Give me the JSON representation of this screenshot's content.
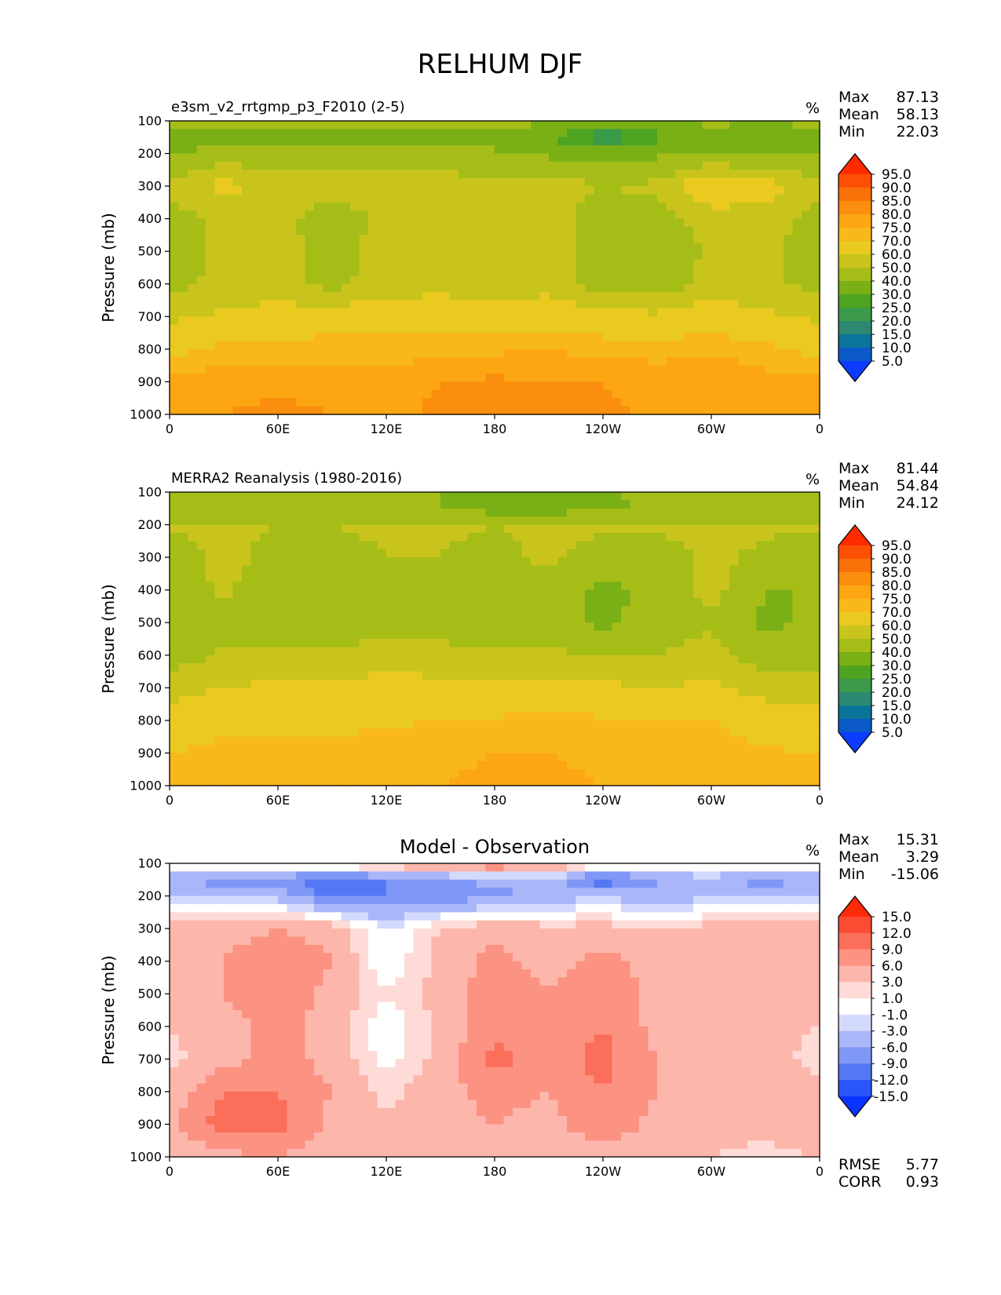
{
  "title": "RELHUM DJF",
  "panels": [
    {
      "title": "e3sm_v2_rrtgmp_p3_F2010 (2-5)",
      "units": "%",
      "stats": [
        {
          "label": "Max",
          "value": "87.13"
        },
        {
          "label": "Mean",
          "value": "58.13"
        },
        {
          "label": "Min",
          "value": "22.03"
        }
      ],
      "colorbar": "absolute",
      "field": "model",
      "footer": []
    },
    {
      "title": "MERRA2 Reanalysis (1980-2016)",
      "units": "%",
      "stats": [
        {
          "label": "Max",
          "value": "81.44"
        },
        {
          "label": "Mean",
          "value": "54.84"
        },
        {
          "label": "Min",
          "value": "24.12"
        }
      ],
      "colorbar": "absolute",
      "field": "obs",
      "footer": []
    },
    {
      "title": "Model - Observation",
      "units": "%",
      "stats": [
        {
          "label": "Max",
          "value": "15.31"
        },
        {
          "label": "Mean",
          "value": "3.29"
        },
        {
          "label": "Min",
          "value": "-15.06"
        }
      ],
      "colorbar": "diff",
      "field": "diff",
      "footer": [
        {
          "label": "RMSE",
          "value": "5.77"
        },
        {
          "label": "CORR",
          "value": "0.93"
        }
      ]
    }
  ],
  "colorbars": {
    "absolute": {
      "levels": [
        "5.0",
        "10.0",
        "15.0",
        "20.0",
        "25.0",
        "30.0",
        "40.0",
        "50.0",
        "60.0",
        "70.0",
        "75.0",
        "80.0",
        "85.0",
        "90.0",
        "95.0"
      ],
      "bounds": [
        0,
        5,
        10,
        15,
        20,
        25,
        30,
        40,
        50,
        60,
        70,
        75,
        80,
        85,
        90,
        95,
        100
      ],
      "colors": [
        "#0b3cff",
        "#0b58c8",
        "#0a749a",
        "#2c8870",
        "#3a9a4a",
        "#4ea321",
        "#78b016",
        "#a6bd18",
        "#c8c41c",
        "#ebca1f",
        "#f8b81a",
        "#fca614",
        "#fb8e0e",
        "#f97108",
        "#fd5005",
        "#fe2b00"
      ]
    },
    "diff": {
      "levels": [
        "-15.0",
        "-12.0",
        "-9.0",
        "-6.0",
        "-3.0",
        "-1.0",
        "1.0",
        "3.0",
        "6.0",
        "9.0",
        "12.0",
        "15.0"
      ],
      "bounds": [
        -18,
        -15,
        -12,
        -9,
        -6,
        -3,
        -1,
        1,
        3,
        6,
        9,
        12,
        15,
        18
      ],
      "colors": [
        "#0a33ff",
        "#2a55f9",
        "#5478f4",
        "#7f97f6",
        "#a9b6f8",
        "#d4dafb",
        "#ffffff",
        "#fedbd6",
        "#fdb6ab",
        "#fc9281",
        "#fb6e59",
        "#fb4b32",
        "#fe2a08"
      ]
    }
  },
  "chart_data": {
    "type": "heatmap",
    "xlabel": "",
    "ylabel": "Pressure (mb)",
    "x_ticks": [
      "0",
      "60E",
      "120E",
      "180",
      "120W",
      "60W",
      "0"
    ],
    "x_tick_values": [
      0,
      60,
      120,
      180,
      240,
      300,
      360
    ],
    "y_ticks": [
      "100",
      "200",
      "300",
      "400",
      "500",
      "600",
      "700",
      "800",
      "900",
      "1000"
    ],
    "y_tick_values": [
      100,
      200,
      300,
      400,
      500,
      600,
      700,
      800,
      900,
      1000
    ],
    "xlim": [
      0,
      360
    ],
    "ylim": [
      1000,
      100
    ],
    "grid_lon": [
      0,
      30,
      60,
      90,
      120,
      150,
      180,
      210,
      240,
      270,
      300,
      330,
      360
    ],
    "grid_p": [
      100,
      150,
      200,
      300,
      400,
      500,
      600,
      700,
      800,
      900,
      1000
    ],
    "model": [
      [
        46,
        45,
        45,
        46,
        47,
        47,
        46,
        40,
        36,
        38,
        43,
        38,
        46
      ],
      [
        34,
        37,
        37,
        26,
        30,
        34,
        38,
        30,
        18,
        27,
        36,
        34,
        34
      ],
      [
        40,
        43,
        43,
        46,
        46,
        42,
        41,
        38,
        37,
        38,
        39,
        38,
        40
      ],
      [
        52,
        64,
        55,
        55,
        56,
        55,
        55,
        55,
        50,
        52,
        71,
        66,
        52
      ],
      [
        45,
        53,
        55,
        42,
        54,
        55,
        54,
        56,
        43,
        47,
        54,
        55,
        45
      ],
      [
        44,
        52,
        55,
        44,
        56,
        56,
        55,
        56,
        42,
        42,
        52,
        53,
        44
      ],
      [
        46,
        54,
        55,
        46,
        56,
        56,
        55,
        56,
        43,
        43,
        55,
        53,
        46
      ],
      [
        58,
        62,
        64,
        66,
        66,
        67,
        67,
        67,
        65,
        62,
        66,
        62,
        58
      ],
      [
        68,
        72,
        72,
        73,
        73,
        73,
        74,
        75,
        73,
        73,
        74,
        72,
        68
      ],
      [
        76,
        78,
        79,
        78,
        77,
        80,
        81,
        80,
        80,
        78,
        80,
        77,
        76
      ],
      [
        78,
        80,
        81,
        80,
        79,
        81,
        82,
        81,
        81,
        79,
        80,
        78,
        78
      ]
    ],
    "obs": [
      [
        46,
        46,
        46,
        46,
        44,
        40,
        32,
        32,
        37,
        45,
        46,
        40,
        46
      ],
      [
        40,
        40,
        40,
        40,
        40,
        40,
        36,
        34,
        38,
        42,
        42,
        40,
        40
      ],
      [
        52,
        52,
        50,
        50,
        52,
        52,
        50,
        53,
        53,
        52,
        52,
        52,
        52
      ],
      [
        42,
        55,
        45,
        46,
        50,
        50,
        46,
        53,
        44,
        46,
        52,
        48,
        42
      ],
      [
        40,
        52,
        42,
        40,
        42,
        44,
        44,
        45,
        38,
        42,
        54,
        40,
        40
      ],
      [
        42,
        44,
        40,
        42,
        45,
        44,
        44,
        44,
        38,
        44,
        48,
        38,
        42
      ],
      [
        44,
        52,
        52,
        52,
        55,
        54,
        52,
        52,
        50,
        50,
        55,
        44,
        44
      ],
      [
        56,
        60,
        62,
        62,
        64,
        63,
        62,
        62,
        62,
        60,
        62,
        56,
        56
      ],
      [
        64,
        68,
        68,
        68,
        69,
        70,
        71,
        72,
        71,
        70,
        70,
        66,
        64
      ],
      [
        70,
        72,
        73,
        73,
        72,
        74,
        75,
        75,
        74,
        72,
        74,
        71,
        70
      ],
      [
        72,
        73,
        74,
        74,
        73,
        75,
        76,
        76,
        75,
        73,
        75,
        72,
        72
      ]
    ],
    "diff": [
      [
        2,
        2,
        2,
        4,
        6,
        8,
        10,
        7,
        3,
        2,
        2,
        2,
        2
      ],
      [
        -5,
        -8,
        -7,
        -12,
        -9,
        -7,
        -5,
        -4,
        -12,
        -6,
        -4,
        -8,
        -5
      ],
      [
        -3,
        -4,
        -4,
        -10,
        -9,
        -8,
        -7,
        -5,
        -3,
        -6,
        -3,
        -4,
        -3
      ],
      [
        4,
        5,
        6,
        5,
        -1,
        3,
        5,
        4,
        4,
        3,
        4,
        4,
        4
      ],
      [
        4,
        6,
        8,
        6,
        -1,
        4,
        7,
        5,
        7,
        5,
        4,
        6,
        4
      ],
      [
        4,
        6,
        8,
        5,
        1,
        4,
        8,
        6,
        8,
        5,
        3,
        5,
        4
      ],
      [
        3,
        5,
        7,
        5,
        -1,
        4,
        8,
        6,
        9,
        5,
        4,
        4,
        3
      ],
      [
        2,
        5,
        7,
        5,
        0,
        4,
        10,
        8,
        10,
        6,
        4,
        4,
        2
      ],
      [
        4,
        9,
        9,
        6,
        2,
        5,
        7,
        6,
        9,
        6,
        5,
        5,
        4
      ],
      [
        5,
        11,
        10,
        5,
        4,
        5,
        6,
        5,
        8,
        5,
        4,
        4,
        5
      ],
      [
        3,
        5,
        6,
        4,
        3,
        4,
        5,
        4,
        5,
        4,
        3,
        2,
        3
      ]
    ]
  }
}
